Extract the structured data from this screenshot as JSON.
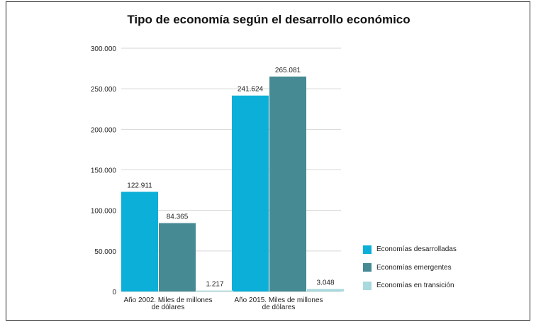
{
  "chart_data": {
    "type": "bar",
    "title": "Tipo de economía según el desarrollo económico",
    "categories": [
      "Año 2002. Miles de millones de dólares",
      "Año 2015. Miles de millones de dólares"
    ],
    "category_lines": [
      [
        "Año 2002. Miles de millones",
        "de dólares"
      ],
      [
        "Año 2015. Miles de millones",
        "de dólares"
      ]
    ],
    "series": [
      {
        "name": "Economías desarrolladas",
        "color": "#0BAFD7",
        "values": [
          122911,
          241624
        ],
        "labels": [
          "122.911",
          "241.624"
        ]
      },
      {
        "name": "Economías emergentes",
        "color": "#468A93",
        "values": [
          84365,
          265081
        ],
        "labels": [
          "84.365",
          "265.081"
        ]
      },
      {
        "name": "Economías en transición",
        "color": "#A8D9DD",
        "values": [
          1217,
          3048
        ],
        "labels": [
          "1.217",
          "3.048"
        ]
      }
    ],
    "ylim": [
      0,
      300000
    ],
    "yticks": [
      0,
      50000,
      100000,
      150000,
      200000,
      250000,
      300000
    ],
    "ytick_labels": [
      "0",
      "50.000",
      "100.000",
      "150.000",
      "200.000",
      "250.000",
      "300.000"
    ],
    "grid": true,
    "legend": "bottom-right"
  }
}
